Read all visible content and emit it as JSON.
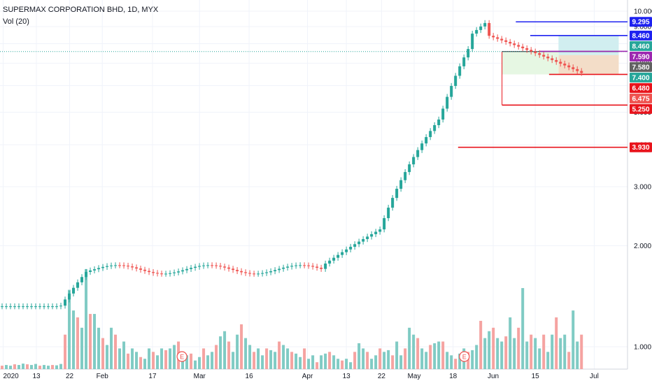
{
  "header": {
    "symbol_line": "SUPERMAX CORPORATION BHD, 1D, MYX",
    "volume_line": "Vol (20)"
  },
  "colors": {
    "up": "#26a69a",
    "down": "#ef5350",
    "vol_up": "#80cbc4",
    "vol_down": "#f5a3a1",
    "grid": "#f0f3fa",
    "axis_text": "#131722",
    "blue_line": "#1e22f0",
    "red_line": "#e8141c",
    "purple": "#9c27b0",
    "teal_zone": "#d1eef0",
    "tan_zone": "#f3ddc8",
    "green_zone": "#e6f7e3",
    "dotted": "#26a69a"
  },
  "chart_data": {
    "type": "candlestick",
    "title": "SUPERMAX CORPORATION BHD, 1D, MYX",
    "y_axis": {
      "scale": "log",
      "ticks": [
        "10.000",
        "9.000",
        "8.000",
        "7.000",
        "6.000",
        "5.000",
        "4.000",
        "3.000",
        "2.000",
        "1.000"
      ],
      "tick_values": [
        10,
        9,
        8,
        7,
        6,
        5,
        4,
        3,
        2,
        1
      ]
    },
    "x_axis": {
      "labels": [
        "2020",
        "13",
        "22",
        "Feb",
        "17",
        "Mar",
        "16",
        "Apr",
        "13",
        "22",
        "May",
        "18",
        "Jun",
        "15",
        "Jul"
      ]
    },
    "price_labels": [
      {
        "text": "9.295",
        "value": 9.295,
        "color": "#1e22f0"
      },
      {
        "text": "8.460",
        "value": 8.46,
        "color": "#1e22f0"
      },
      {
        "text": "8.460",
        "value": 8.46,
        "color": "#26a69a"
      },
      {
        "text": "7.590",
        "value": 7.59,
        "color": "#9c27b0"
      },
      {
        "text": "7.580",
        "value": 7.58,
        "color": "#616161"
      },
      {
        "text": "7.400",
        "value": 7.4,
        "color": "#26a69a"
      },
      {
        "text": "6.480",
        "value": 6.48,
        "color": "#e8141c"
      },
      {
        "text": "6.475",
        "value": 6.475,
        "color": "#ef5350"
      },
      {
        "text": "5.250",
        "value": 5.25,
        "color": "#e8141c"
      },
      {
        "text": "3.930",
        "value": 3.93,
        "color": "#e8141c"
      }
    ],
    "levels": [
      {
        "value": 9.295,
        "color": "blue",
        "from": 0.822
      },
      {
        "value": 8.46,
        "color": "blue",
        "from": 0.845
      },
      {
        "value": 7.59,
        "color": "purple",
        "from": 0.86
      },
      {
        "value": 6.48,
        "color": "red",
        "from": 0.875
      },
      {
        "value": 5.25,
        "color": "red",
        "from": 0.8
      },
      {
        "value": 3.93,
        "color": "red",
        "from": 0.73
      }
    ],
    "earnings_markers": [
      {
        "label": "E",
        "x": 0.29
      },
      {
        "label": "E",
        "x": 0.74
      }
    ],
    "volume": {
      "name": "Vol (20)",
      "values": [
        0.1,
        0.12,
        0.1,
        0.14,
        0.12,
        0.16,
        0.14,
        0.12,
        0.15,
        0.1,
        0.12,
        0.1,
        0.12,
        0.11,
        0.15,
        1.0,
        2.3,
        1.7,
        1.5,
        1.2,
        2.9,
        1.6,
        1.6,
        1.2,
        0.9,
        0.7,
        1.2,
        1.0,
        0.6,
        0.8,
        0.45,
        0.6,
        0.5,
        0.35,
        0.3,
        0.6,
        0.5,
        0.4,
        0.6,
        0.55,
        0.6,
        0.7,
        0.8,
        0.5,
        0.4,
        0.45,
        0.25,
        0.35,
        0.6,
        0.4,
        0.5,
        0.7,
        0.95,
        1.1,
        0.8,
        0.5,
        1.0,
        1.3,
        0.9,
        0.7,
        0.5,
        0.6,
        0.4,
        0.6,
        0.55,
        0.5,
        0.8,
        0.7,
        0.6,
        0.5,
        0.45,
        0.35,
        0.6,
        0.3,
        0.4,
        0.2,
        0.4,
        0.45,
        0.5,
        0.4,
        0.3,
        0.25,
        0.3,
        0.2,
        0.5,
        0.75,
        0.6,
        0.5,
        0.3,
        0.4,
        0.6,
        0.5,
        0.55,
        0.4,
        0.8,
        0.4,
        0.6,
        1.2,
        1.0,
        0.9,
        0.6,
        0.5,
        0.7,
        0.75,
        0.8,
        0.8,
        0.5,
        0.4,
        0.3,
        0.45,
        0.6,
        0.5,
        0.55,
        0.7,
        1.4,
        0.9,
        1.1,
        1.2,
        0.9,
        0.8,
        0.95,
        1.5,
        0.9,
        1.2,
        2.35,
        0.8,
        1.0,
        0.9,
        0.6,
        1.0,
        0.5,
        1.0,
        1.5,
        0.9,
        1.0,
        0.5,
        1.7,
        0.8,
        1.0
      ],
      "y_max": 3.0
    }
  }
}
